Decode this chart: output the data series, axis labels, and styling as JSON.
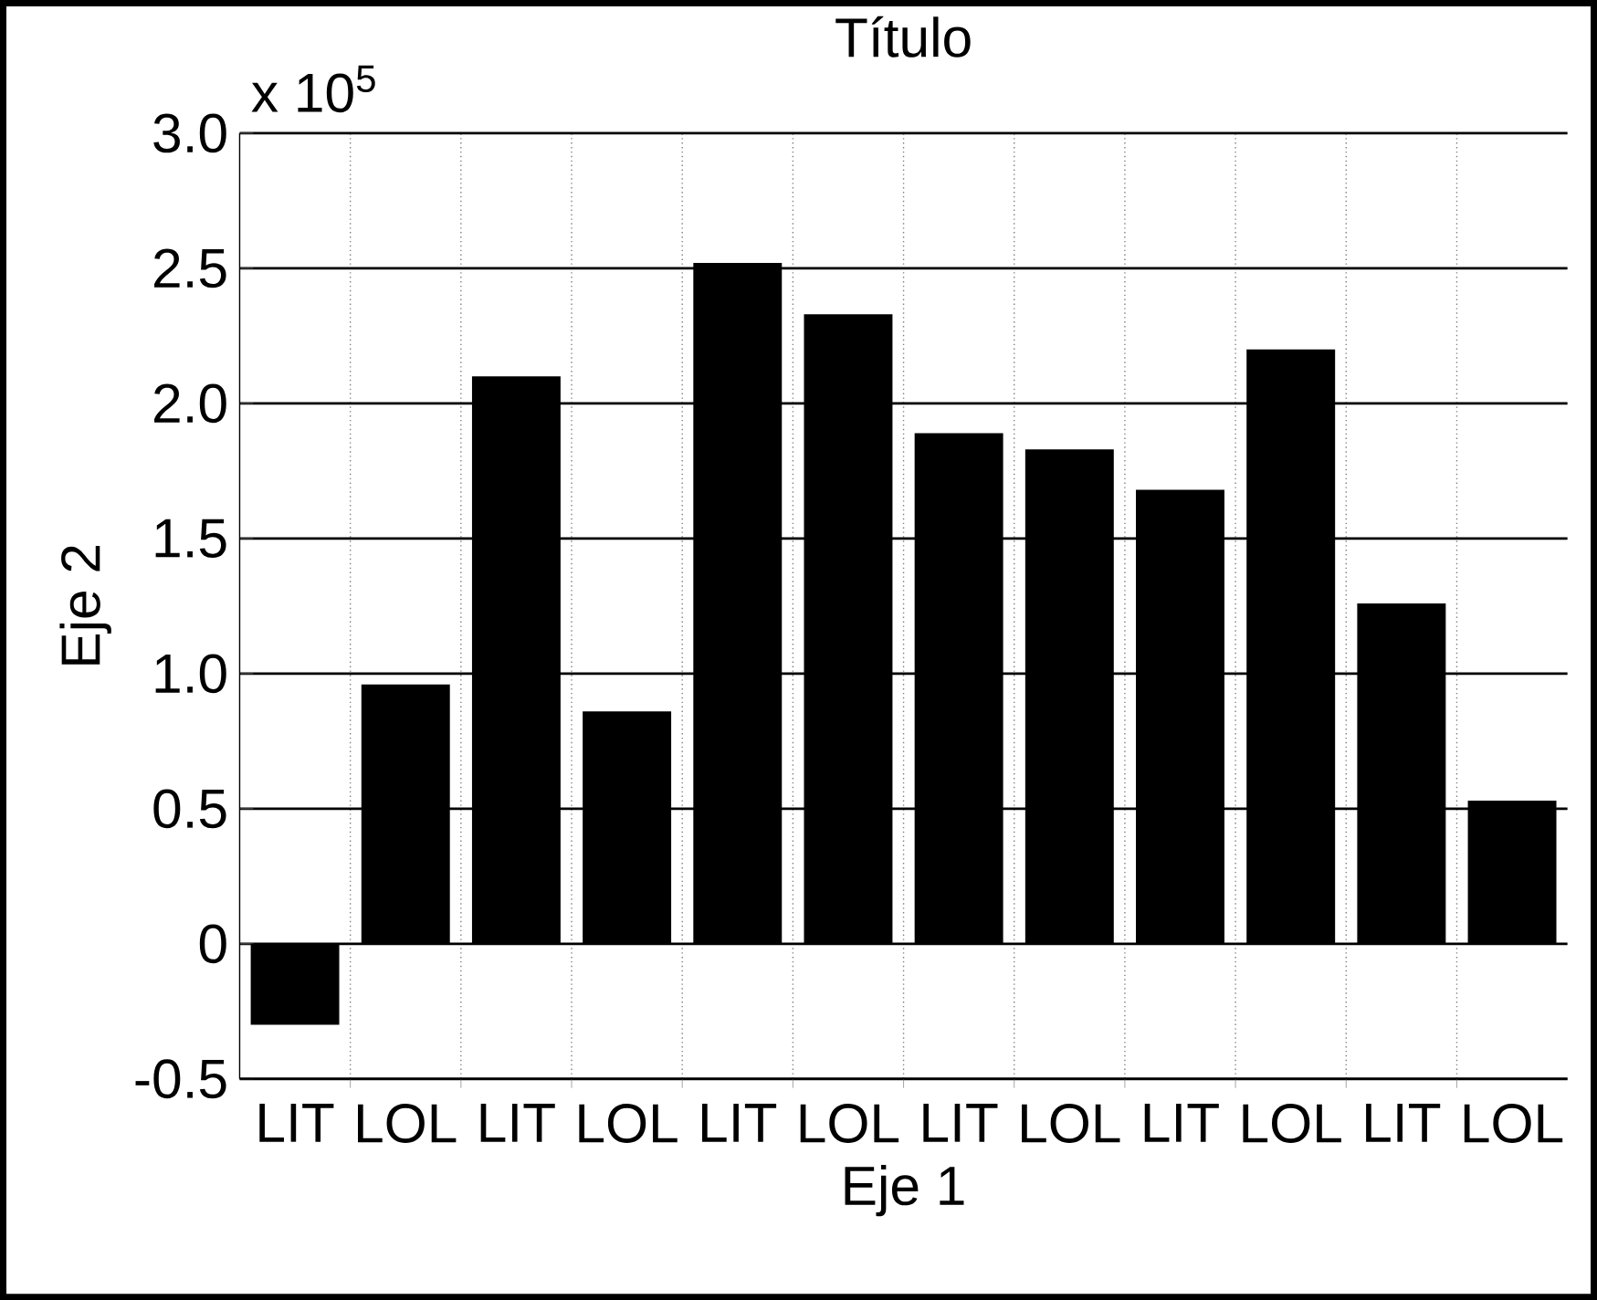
{
  "chart_data": {
    "type": "bar",
    "title": "Título",
    "xlabel": "Eje 1",
    "ylabel": "Eje 2",
    "annotations": [
      "x 10$^{5}$"
    ],
    "categories": [
      "LIT",
      "LOL",
      "LIT",
      "LOL",
      "LIT",
      "LOL",
      "LIT",
      "LOL",
      "LIT",
      "LOL",
      "LIT",
      "LOL"
    ],
    "values": [
      -0.3,
      0.96,
      2.1,
      0.86,
      2.52,
      2.33,
      1.89,
      1.83,
      1.68,
      2.2,
      1.26,
      0.53
    ],
    "color": "#000000",
    "ylim": [
      -0.5,
      3.0
    ],
    "yticks": [
      {
        "value": -0.5,
        "label": "-0.5"
      },
      0,
      {
        "value": 0.5,
        "label": "0.5"
      },
      {
        "value": 1.0,
        "label": "1.0"
      },
      {
        "value": 1.5,
        "label": "1.5"
      },
      {
        "value": 2.0,
        "label": "2.0"
      },
      {
        "value": 2.5,
        "label": "2.5"
      },
      {
        "value": 3.0,
        "label": "3.0"
      }
    ],
    "grid": true
  }
}
